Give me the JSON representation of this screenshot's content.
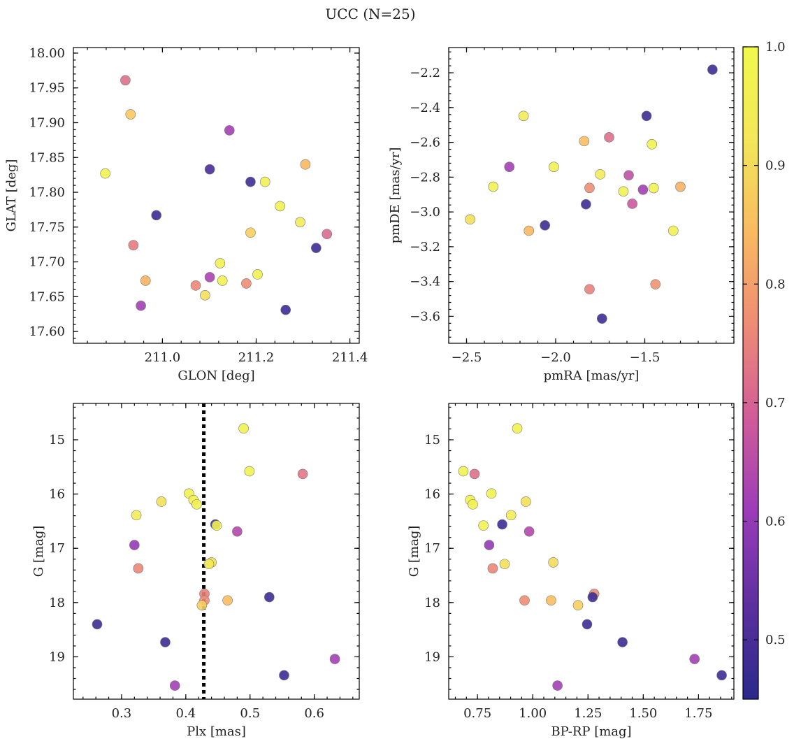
{
  "figure": {
    "suptitle": "UCC (N=25)"
  },
  "colorbar": {
    "ticks": [
      0.5,
      0.6,
      0.7,
      0.8,
      0.9,
      1.0
    ],
    "tick_labels": [
      "0.5",
      "0.6",
      "0.7",
      "0.8",
      "0.9",
      "1.0"
    ],
    "range": [
      0.45,
      1.0
    ],
    "colormap": "plasma",
    "colormap_stops": [
      "#2a2a8c",
      "#5b2f9f",
      "#9a3bb9",
      "#d05b9a",
      "#ee8a75",
      "#f9b961",
      "#f2e759",
      "#f0f94c"
    ]
  },
  "threshold_line": {
    "x": 0.428,
    "style": "dotted",
    "color": "#000000"
  },
  "chart_data": [
    {
      "type": "scatter",
      "name": "position",
      "xlabel": "GLON [deg]",
      "ylabel": "GLAT [deg]",
      "xlim": [
        210.81,
        211.42
      ],
      "ylim": [
        17.583,
        18.008
      ],
      "y_inverted": false,
      "xticks": [
        211.0,
        211.2,
        211.4
      ],
      "xtick_labels": [
        "211.0",
        "211.2",
        "211.4"
      ],
      "yticks": [
        17.6,
        17.65,
        17.7,
        17.75,
        17.8,
        17.85,
        17.9,
        17.95,
        18.0
      ],
      "ytick_labels": [
        "17.60",
        "17.65",
        "17.70",
        "17.75",
        "17.80",
        "17.85",
        "17.90",
        "17.95",
        "18.00"
      ],
      "x": [
        210.921,
        210.932,
        210.878,
        211.143,
        210.987,
        211.101,
        211.188,
        211.219,
        211.305,
        211.251,
        211.294,
        211.188,
        211.351,
        210.938,
        211.328,
        211.123,
        211.203,
        211.101,
        211.128,
        210.964,
        211.071,
        211.179,
        211.091,
        210.954,
        211.263
      ],
      "y": [
        17.961,
        17.912,
        17.827,
        17.889,
        17.767,
        17.833,
        17.815,
        17.815,
        17.84,
        17.78,
        17.757,
        17.742,
        17.74,
        17.724,
        17.72,
        17.698,
        17.682,
        17.678,
        17.673,
        17.673,
        17.666,
        17.669,
        17.652,
        17.637,
        17.631
      ],
      "c": [
        0.72,
        0.87,
        0.98,
        0.62,
        0.48,
        0.5,
        0.48,
        0.97,
        0.84,
        0.97,
        0.94,
        0.88,
        0.71,
        0.74,
        0.48,
        0.97,
        0.97,
        0.63,
        0.97,
        0.83,
        0.76,
        0.77,
        0.91,
        0.62,
        0.48
      ]
    },
    {
      "type": "scatter",
      "name": "proper-motion",
      "xlabel": "pmRA [mas/yr]",
      "ylabel": "pmDE [mas/yr]",
      "xlim": [
        -2.6,
        -1.0
      ],
      "ylim": [
        -3.755,
        -2.055
      ],
      "y_inverted": false,
      "xticks": [
        -2.5,
        -2.0,
        -1.5
      ],
      "xtick_labels": [
        "−2.5",
        "−2.0",
        "−1.5"
      ],
      "yticks": [
        -3.6,
        -3.4,
        -3.2,
        -3.0,
        -2.8,
        -2.6,
        -2.4,
        -2.2
      ],
      "ytick_labels": [
        "−3.6",
        "−3.4",
        "−3.2",
        "−3.0",
        "−2.8",
        "−2.6",
        "−2.4",
        "−2.2"
      ],
      "x": [
        -1.12,
        -1.49,
        -2.18,
        -1.84,
        -1.7,
        -1.46,
        -2.26,
        -2.01,
        -1.75,
        -1.59,
        -2.35,
        -1.81,
        -1.62,
        -1.45,
        -1.3,
        -1.51,
        -1.57,
        -1.83,
        -2.48,
        -2.15,
        -2.06,
        -1.34,
        -1.81,
        -1.44,
        -1.74
      ],
      "y": [
        -2.182,
        -2.448,
        -2.448,
        -2.593,
        -2.571,
        -2.611,
        -2.741,
        -2.741,
        -2.784,
        -2.789,
        -2.855,
        -2.862,
        -2.882,
        -2.863,
        -2.855,
        -2.872,
        -2.953,
        -2.956,
        -3.043,
        -3.108,
        -3.077,
        -3.108,
        -3.444,
        -3.416,
        -3.613
      ],
      "c": [
        0.48,
        0.48,
        0.94,
        0.85,
        0.72,
        0.97,
        0.62,
        0.97,
        0.94,
        0.66,
        0.97,
        0.77,
        0.97,
        0.97,
        0.83,
        0.62,
        0.68,
        0.48,
        0.91,
        0.84,
        0.48,
        0.96,
        0.75,
        0.78,
        0.48
      ]
    },
    {
      "type": "scatter",
      "name": "cmd-parallax",
      "xlabel": "Plx [mas]",
      "ylabel": "G [mag]",
      "xlim": [
        0.225,
        0.67
      ],
      "ylim": [
        19.78,
        14.33
      ],
      "y_inverted": true,
      "xticks": [
        0.3,
        0.4,
        0.5,
        0.6
      ],
      "xtick_labels": [
        "0.3",
        "0.4",
        "0.5",
        "0.6"
      ],
      "yticks": [
        15,
        16,
        17,
        18,
        19
      ],
      "ytick_labels": [
        "15",
        "16",
        "17",
        "18",
        "19"
      ],
      "x": [
        0.49,
        0.499,
        0.582,
        0.405,
        0.362,
        0.412,
        0.417,
        0.323,
        0.446,
        0.448,
        0.48,
        0.32,
        0.44,
        0.436,
        0.326,
        0.429,
        0.429,
        0.465,
        0.425,
        0.53,
        0.262,
        0.368,
        0.632,
        0.553,
        0.383
      ],
      "y": [
        14.79,
        15.58,
        15.63,
        15.99,
        16.14,
        16.11,
        16.19,
        16.39,
        16.56,
        16.58,
        16.69,
        16.94,
        17.26,
        17.29,
        17.37,
        17.84,
        17.96,
        17.96,
        18.05,
        17.9,
        18.4,
        18.73,
        19.04,
        19.34,
        19.53
      ],
      "c": [
        0.97,
        0.97,
        0.73,
        0.97,
        0.91,
        0.97,
        0.97,
        0.94,
        0.48,
        0.97,
        0.64,
        0.6,
        0.91,
        0.93,
        0.76,
        0.75,
        0.77,
        0.85,
        0.88,
        0.48,
        0.48,
        0.48,
        0.62,
        0.48,
        0.62
      ]
    },
    {
      "type": "scatter",
      "name": "cmd-color",
      "xlabel": "BP-RP [mag]",
      "ylabel": "G [mag]",
      "xlim": [
        0.62,
        1.91
      ],
      "ylim": [
        19.78,
        14.33
      ],
      "y_inverted": true,
      "xticks": [
        0.75,
        1.0,
        1.25,
        1.5,
        1.75
      ],
      "xtick_labels": [
        "0.75",
        "1.00",
        "1.25",
        "1.50",
        "1.75"
      ],
      "yticks": [
        15,
        16,
        17,
        18,
        19
      ],
      "ytick_labels": [
        "15",
        "16",
        "17",
        "18",
        "19"
      ],
      "x": [
        0.93,
        0.686,
        0.737,
        0.717,
        0.813,
        0.969,
        0.729,
        0.902,
        0.777,
        0.862,
        0.984,
        0.803,
        1.093,
        0.873,
        0.819,
        1.278,
        0.963,
        1.083,
        1.205,
        1.271,
        1.246,
        1.406,
        1.732,
        1.855,
        1.112
      ],
      "y": [
        14.79,
        15.58,
        15.63,
        16.11,
        15.99,
        16.14,
        16.19,
        16.39,
        16.58,
        16.56,
        16.69,
        16.94,
        17.26,
        17.29,
        17.37,
        17.84,
        17.96,
        17.96,
        18.05,
        17.9,
        18.4,
        18.73,
        19.04,
        19.34,
        19.53
      ],
      "c": [
        0.97,
        0.97,
        0.72,
        0.97,
        0.97,
        0.91,
        0.97,
        0.94,
        0.97,
        0.48,
        0.64,
        0.6,
        0.9,
        0.91,
        0.76,
        0.77,
        0.77,
        0.85,
        0.88,
        0.48,
        0.48,
        0.48,
        0.62,
        0.48,
        0.62
      ]
    }
  ]
}
